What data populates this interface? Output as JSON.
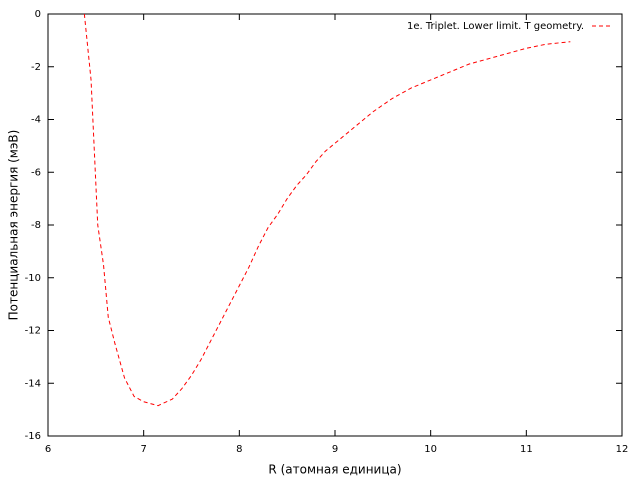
{
  "chart_data": {
    "type": "line",
    "xlabel": "R (атомная единица)",
    "ylabel": "Потенциальная энергия (мэВ)",
    "xlim": [
      6,
      12
    ],
    "ylim": [
      -16,
      0
    ],
    "xticks": [
      6,
      7,
      8,
      9,
      10,
      11,
      12
    ],
    "yticks": [
      -16,
      -14,
      -12,
      -10,
      -8,
      -6,
      -4,
      -2,
      0
    ],
    "legend": "top-right",
    "series": [
      {
        "name": "1e. Triplet. Lower limit. T geometry.",
        "color": "#ff0000",
        "dash": true,
        "x": [
          6.38,
          6.45,
          6.52,
          6.58,
          6.63,
          6.7,
          6.8,
          6.9,
          7.0,
          7.15,
          7.3,
          7.4,
          7.5,
          7.6,
          7.7,
          7.8,
          7.9,
          8.0,
          8.1,
          8.2,
          8.3,
          8.4,
          8.5,
          8.6,
          8.7,
          8.8,
          8.9,
          9.0,
          9.2,
          9.4,
          9.6,
          9.8,
          10.0,
          10.2,
          10.4,
          10.6,
          10.8,
          11.0,
          11.2,
          11.46
        ],
        "values": [
          0,
          -2.5,
          -8.0,
          -9.5,
          -11.5,
          -12.5,
          -13.8,
          -14.5,
          -14.7,
          -14.85,
          -14.6,
          -14.2,
          -13.7,
          -13.1,
          -12.4,
          -11.7,
          -11.0,
          -10.3,
          -9.6,
          -8.8,
          -8.1,
          -7.6,
          -7.0,
          -6.5,
          -6.1,
          -5.6,
          -5.2,
          -4.9,
          -4.3,
          -3.7,
          -3.2,
          -2.8,
          -2.5,
          -2.2,
          -1.9,
          -1.7,
          -1.5,
          -1.3,
          -1.15,
          -1.05
        ]
      }
    ]
  }
}
